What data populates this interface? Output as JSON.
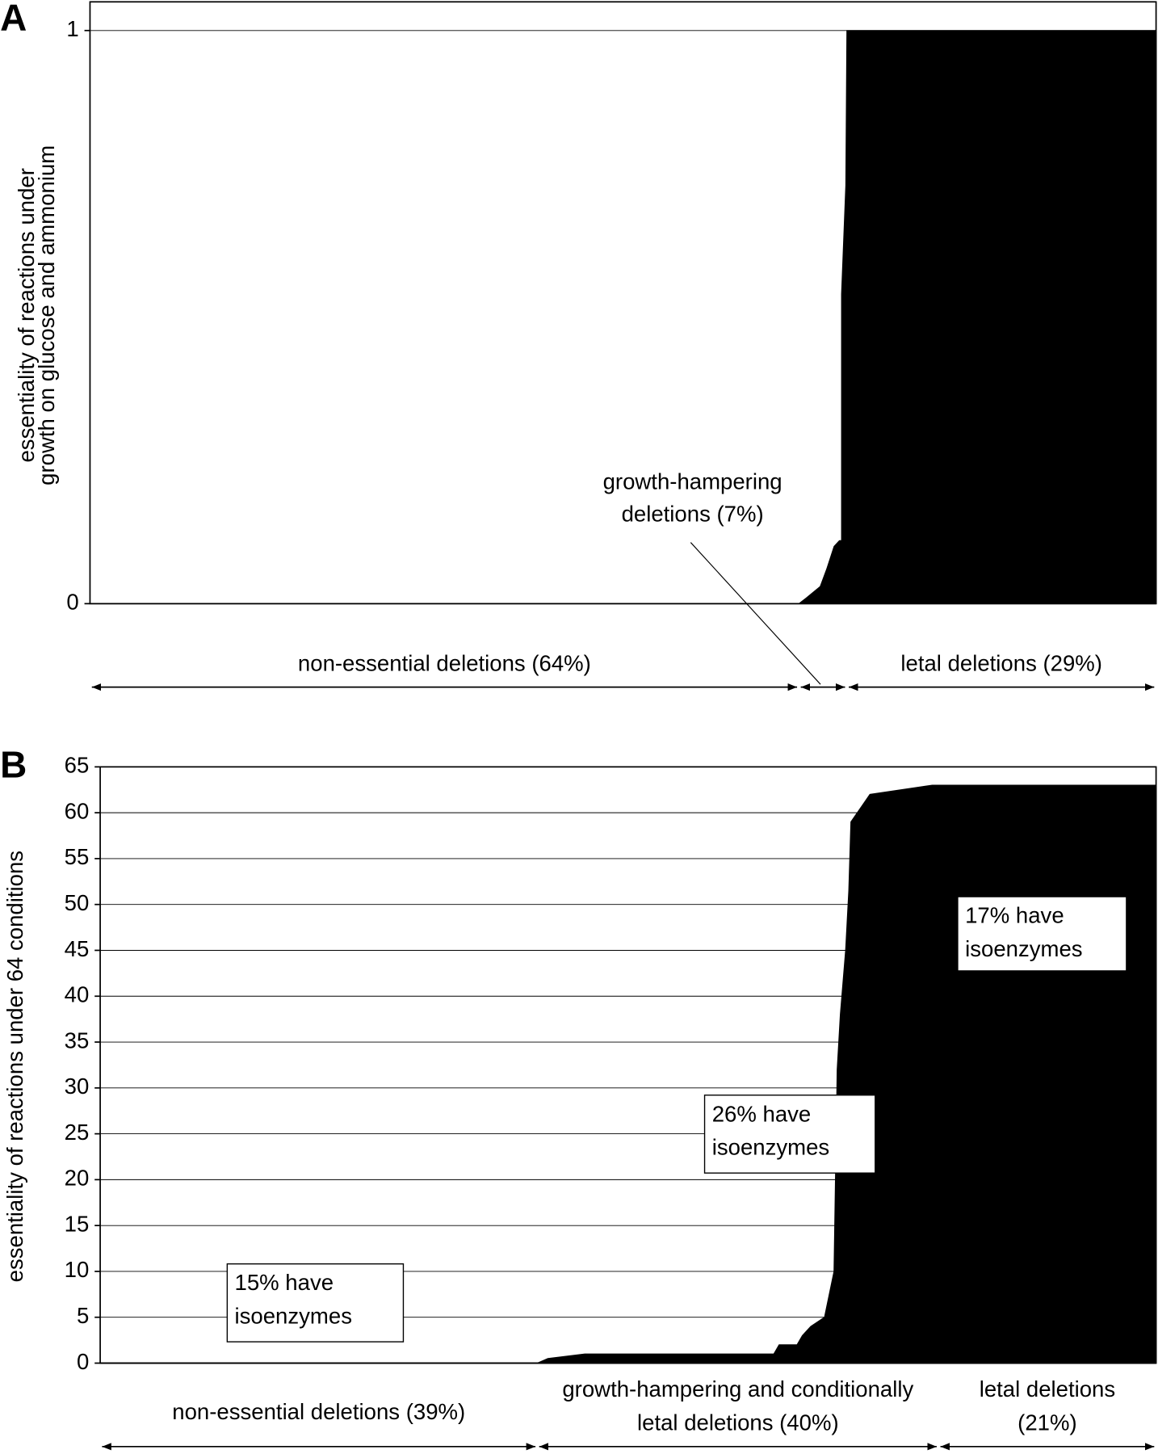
{
  "chart_data": [
    {
      "type": "area",
      "panel_label": "A",
      "ylabel": [
        "essentiality of reactions under",
        "growth on glucose and ammonium"
      ],
      "xlim": [
        0,
        100
      ],
      "ylim": [
        0,
        1.05
      ],
      "yticks": [
        0,
        1
      ],
      "grid": false,
      "color": "#000000",
      "x": [
        0,
        66.5,
        67.2,
        68.5,
        69.1,
        69.8,
        70.3,
        70.5,
        70.5,
        70.9,
        71.0,
        100
      ],
      "values": [
        0,
        0,
        0.01,
        0.03,
        0.06,
        0.1,
        0.11,
        0.11,
        0.54,
        0.73,
        1,
        1
      ],
      "annotations": [
        {
          "text": [
            "growth-hampering",
            "deletions (7%)"
          ]
        }
      ],
      "ranges": [
        {
          "label": [
            "non-essential deletions (64%)"
          ],
          "start": 0,
          "end": 66.5
        },
        {
          "label": [],
          "start": 66.5,
          "end": 71.0
        },
        {
          "label": [
            "letal deletions (29%)"
          ],
          "start": 71.0,
          "end": 100
        }
      ]
    },
    {
      "type": "area",
      "panel_label": "B",
      "ylabel": [
        "essentiality of reactions under 64 conditions"
      ],
      "xlim": [
        0,
        100
      ],
      "ylim": [
        0,
        65
      ],
      "yticks": [
        0,
        5,
        10,
        15,
        20,
        25,
        30,
        35,
        40,
        45,
        50,
        55,
        60,
        65
      ],
      "grid": true,
      "color": "#000000",
      "x": [
        0,
        41.4,
        42.4,
        45.9,
        63.8,
        64.3,
        66.0,
        66.5,
        67.3,
        68.6,
        69.5,
        69.8,
        70.1,
        70.6,
        70.9,
        71.1,
        72.3,
        72.9,
        78.8,
        100
      ],
      "values": [
        0,
        0,
        0.5,
        1,
        1,
        2,
        2,
        3,
        4,
        5,
        10,
        32,
        38,
        45,
        51.5,
        59,
        61,
        62,
        63,
        63
      ],
      "annotations": [
        {
          "text": [
            "15% have",
            "isoenzymes"
          ]
        },
        {
          "text": [
            "26% have",
            "isoenzymes"
          ]
        },
        {
          "text": [
            "17% have",
            "isoenzymes"
          ]
        }
      ],
      "ranges": [
        {
          "label": [
            "non-essential deletions (39%)"
          ],
          "start": 0,
          "end": 41.4
        },
        {
          "label": [
            "growth-hampering and conditionally",
            "letal deletions (40%)"
          ],
          "start": 41.4,
          "end": 79.4
        },
        {
          "label": [
            "letal deletions",
            "(21%)"
          ],
          "start": 79.4,
          "end": 100
        }
      ]
    }
  ]
}
